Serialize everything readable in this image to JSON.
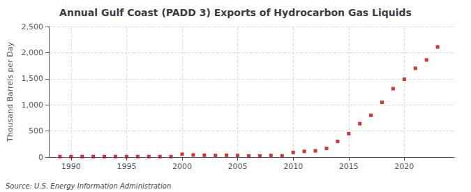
{
  "chart_data": {
    "type": "scatter",
    "title": "Annual Gulf Coast (PADD 3) Exports of Hydrocarbon Gas Liquids",
    "ylabel": "Thousand Barrels per Day",
    "annotation": "Source: U.S. Energy Information Administration",
    "x": [
      1989,
      1990,
      1991,
      1992,
      1993,
      1994,
      1995,
      1996,
      1997,
      1998,
      1999,
      2000,
      2001,
      2002,
      2003,
      2004,
      2005,
      2006,
      2007,
      2008,
      2009,
      2010,
      2011,
      2012,
      2013,
      2014,
      2015,
      2016,
      2017,
      2018,
      2019,
      2020,
      2021,
      2022,
      2023
    ],
    "values": [
      10,
      10,
      10,
      10,
      10,
      10,
      10,
      10,
      10,
      10,
      10,
      55,
      40,
      35,
      30,
      35,
      30,
      20,
      20,
      30,
      25,
      90,
      110,
      120,
      165,
      300,
      450,
      640,
      800,
      1050,
      1310,
      1490,
      1700,
      1860,
      2110
    ],
    "color": "#cc0000",
    "marker": "square",
    "xlim": [
      1988.0,
      2024.5
    ],
    "xticks": [
      1990,
      1995,
      2000,
      2005,
      2010,
      2015,
      2020
    ],
    "ylim": [
      0,
      2500
    ],
    "yticks": [
      0,
      500,
      {
        "value": 1000,
        "label": "1,000"
      },
      {
        "value": 1500,
        "label": "1,500"
      },
      {
        "value": 2000,
        "label": "2,000"
      },
      {
        "value": 2500,
        "label": "2,500"
      }
    ],
    "grid": true
  }
}
